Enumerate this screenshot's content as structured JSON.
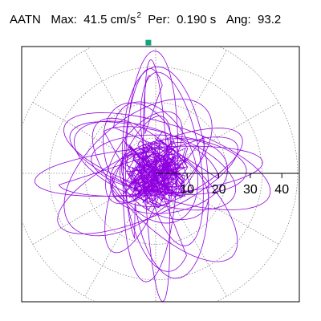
{
  "header": {
    "station": "AATN",
    "max_label": "Max:",
    "max_value": "41.5",
    "max_unit": "cm/s",
    "max_exp": "2",
    "per_label": "Per:",
    "per_value": "0.190 s",
    "ang_label": "Ang:",
    "ang_value": "93.2"
  },
  "chart_data": {
    "type": "polar-orbit",
    "radial_ticks": [
      10,
      20,
      30,
      40
    ],
    "radial_range": [
      0,
      45
    ],
    "angular_grid_deg": [
      0,
      30,
      60,
      90,
      120,
      150,
      180,
      210,
      240,
      270,
      300,
      330
    ],
    "grid": true,
    "max_magnitude": 41.5,
    "max_angle_deg": 93.2,
    "units": "cm/s^2",
    "colors": {
      "trace": "#8f00e0",
      "grid": "#888888",
      "max_marker": "#14a37f",
      "axis": "#000000"
    }
  }
}
